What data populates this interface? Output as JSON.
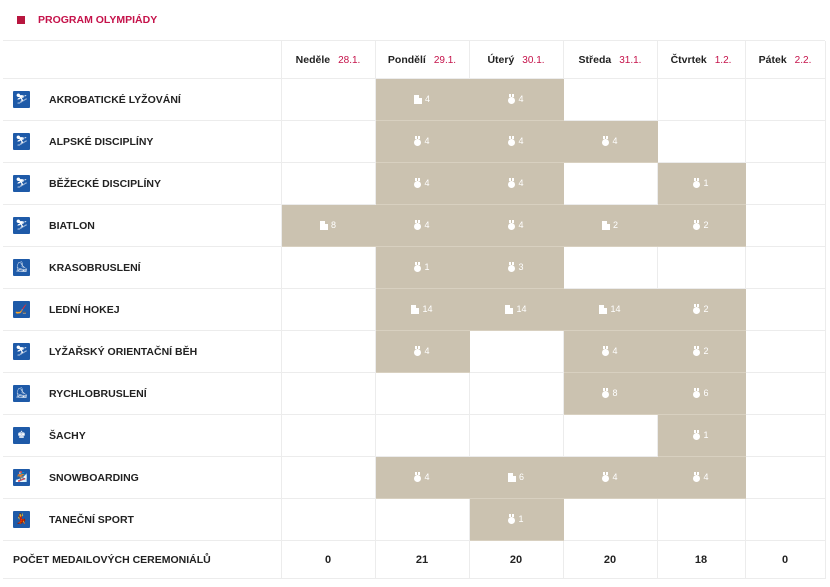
{
  "title": "PROGRAM OLYMPIÁDY",
  "days": [
    {
      "name": "Neděle",
      "date": "28.1."
    },
    {
      "name": "Pondělí",
      "date": "29.1."
    },
    {
      "name": "Úterý",
      "date": "30.1."
    },
    {
      "name": "Středa",
      "date": "31.1."
    },
    {
      "name": "Čtvrtek",
      "date": "1.2."
    },
    {
      "name": "Pátek",
      "date": "2.2."
    }
  ],
  "sports": [
    {
      "name": "AKROBATICKÉ LYŽOVÁNÍ",
      "icon": "freestyle-skiing-icon",
      "glyph": "⛷",
      "cells": [
        null,
        {
          "type": "doc",
          "count": "4"
        },
        {
          "type": "medal",
          "count": "4"
        },
        null,
        null,
        null
      ]
    },
    {
      "name": "ALPSKÉ DISCIPLÍNY",
      "icon": "alpine-skiing-icon",
      "glyph": "⛷",
      "cells": [
        null,
        {
          "type": "medal",
          "count": "4"
        },
        {
          "type": "medal",
          "count": "4"
        },
        {
          "type": "medal",
          "count": "4"
        },
        null,
        null
      ]
    },
    {
      "name": "BĚŽECKÉ DISCIPLÍNY",
      "icon": "cross-country-skiing-icon",
      "glyph": "⛷",
      "cells": [
        null,
        {
          "type": "medal",
          "count": "4"
        },
        {
          "type": "medal",
          "count": "4"
        },
        null,
        {
          "type": "medal",
          "count": "1"
        },
        null
      ]
    },
    {
      "name": "BIATLON",
      "icon": "biathlon-icon",
      "glyph": "⛷",
      "cells": [
        {
          "type": "doc",
          "count": "8"
        },
        {
          "type": "medal",
          "count": "4"
        },
        {
          "type": "medal",
          "count": "4"
        },
        {
          "type": "doc",
          "count": "2"
        },
        {
          "type": "medal",
          "count": "2"
        },
        null
      ]
    },
    {
      "name": "KRASOBRUSLENÍ",
      "icon": "figure-skating-icon",
      "glyph": "⛸",
      "cells": [
        null,
        {
          "type": "medal",
          "count": "1"
        },
        {
          "type": "medal",
          "count": "3"
        },
        null,
        null,
        null
      ]
    },
    {
      "name": "LEDNÍ HOKEJ",
      "icon": "ice-hockey-icon",
      "glyph": "🏒",
      "cells": [
        null,
        {
          "type": "doc",
          "count": "14"
        },
        {
          "type": "doc",
          "count": "14"
        },
        {
          "type": "doc",
          "count": "14"
        },
        {
          "type": "medal",
          "count": "2"
        },
        null
      ]
    },
    {
      "name": "LYŽAŘSKÝ ORIENTAČNÍ BĚH",
      "icon": "ski-orienteering-icon",
      "glyph": "⛷",
      "cells": [
        null,
        {
          "type": "medal",
          "count": "4"
        },
        null,
        {
          "type": "medal",
          "count": "4"
        },
        {
          "type": "medal",
          "count": "2"
        },
        null
      ]
    },
    {
      "name": "RYCHLOBRUSLENÍ",
      "icon": "speed-skating-icon",
      "glyph": "⛸",
      "cells": [
        null,
        null,
        null,
        {
          "type": "medal",
          "count": "8"
        },
        {
          "type": "medal",
          "count": "6"
        },
        null
      ]
    },
    {
      "name": "ŠACHY",
      "icon": "chess-icon",
      "glyph": "♚",
      "cells": [
        null,
        null,
        null,
        null,
        {
          "type": "medal",
          "count": "1"
        },
        null
      ]
    },
    {
      "name": "SNOWBOARDING",
      "icon": "snowboarding-icon",
      "glyph": "🏂",
      "cells": [
        null,
        {
          "type": "medal",
          "count": "4"
        },
        {
          "type": "doc",
          "count": "6"
        },
        {
          "type": "medal",
          "count": "4"
        },
        {
          "type": "medal",
          "count": "4"
        },
        null
      ]
    },
    {
      "name": "TANEČNÍ SPORT",
      "icon": "dance-sport-icon",
      "glyph": "💃",
      "cells": [
        null,
        null,
        {
          "type": "medal",
          "count": "1"
        },
        null,
        null,
        null
      ]
    }
  ],
  "footer": {
    "label": "POČET MEDAILOVÝCH CEREMONIÁLŮ",
    "totals": [
      "0",
      "21",
      "20",
      "20",
      "18",
      "0"
    ]
  },
  "colors": {
    "accent": "#c5124a",
    "fill": "#cbc2b0",
    "icon_bg": "#1e5aa8"
  }
}
